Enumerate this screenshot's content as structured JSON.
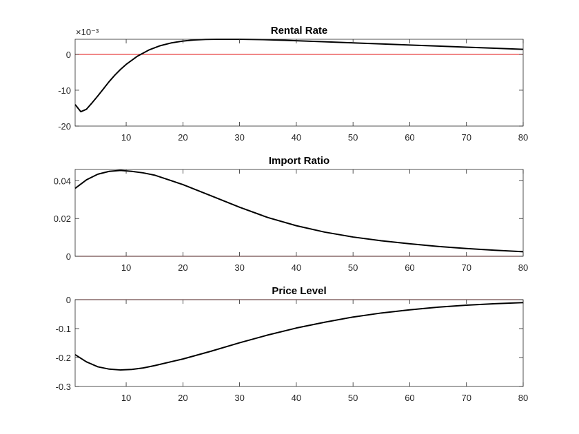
{
  "chart_data": [
    {
      "type": "line",
      "title": "Rental Rate",
      "xlim": [
        1,
        80
      ],
      "ylim": [
        -20,
        4.2
      ],
      "xticks": [
        10,
        20,
        30,
        40,
        50,
        60,
        70,
        80
      ],
      "yticks": [
        -20,
        -10,
        0
      ],
      "ytick_labels": [
        "-20",
        "-10",
        "0"
      ],
      "exponent_label": "×10⁻³",
      "reference_line": 0,
      "colors": {
        "series": "#000000",
        "reference": "#e00000"
      },
      "series": [
        {
          "x": [
            1,
            2,
            3,
            4,
            5,
            6,
            7,
            8,
            9,
            10,
            12,
            14,
            16,
            18,
            20,
            22,
            24,
            26,
            28,
            30,
            32,
            34,
            36,
            38,
            40,
            45,
            50,
            55,
            60,
            65,
            70,
            75,
            80
          ],
          "values": [
            -14,
            -16,
            -15.3,
            -13.5,
            -11.6,
            -9.6,
            -7.6,
            -5.8,
            -4.2,
            -2.8,
            -0.5,
            1.2,
            2.4,
            3.2,
            3.7,
            4.0,
            4.15,
            4.2,
            4.2,
            4.2,
            4.15,
            4.1,
            4.0,
            3.9,
            3.8,
            3.5,
            3.2,
            2.9,
            2.6,
            2.3,
            2.0,
            1.7,
            1.4
          ]
        }
      ]
    },
    {
      "type": "line",
      "title": "Import Ratio",
      "xlim": [
        1,
        80
      ],
      "ylim": [
        0,
        0.046
      ],
      "xticks": [
        10,
        20,
        30,
        40,
        50,
        60,
        70,
        80
      ],
      "yticks": [
        0,
        0.02,
        0.04
      ],
      "ytick_labels": [
        "0",
        "0.02",
        "0.04"
      ],
      "reference_line": 0,
      "colors": {
        "series": "#000000",
        "reference": "#e00000"
      },
      "series": [
        {
          "x": [
            1,
            3,
            5,
            7,
            9,
            11,
            13,
            15,
            20,
            25,
            30,
            35,
            40,
            45,
            50,
            55,
            60,
            65,
            70,
            75,
            80
          ],
          "values": [
            0.036,
            0.0405,
            0.0435,
            0.045,
            0.0455,
            0.045,
            0.0442,
            0.043,
            0.038,
            0.032,
            0.026,
            0.0205,
            0.0162,
            0.0128,
            0.0102,
            0.0082,
            0.0066,
            0.0052,
            0.0041,
            0.0032,
            0.0024
          ]
        }
      ]
    },
    {
      "type": "line",
      "title": "Price Level",
      "xlim": [
        1,
        80
      ],
      "ylim": [
        -0.3,
        0
      ],
      "xticks": [
        10,
        20,
        30,
        40,
        50,
        60,
        70,
        80
      ],
      "yticks": [
        -0.3,
        -0.2,
        -0.1,
        0
      ],
      "ytick_labels": [
        "-0.3",
        "-0.2",
        "-0.1",
        "0"
      ],
      "reference_line": 0,
      "colors": {
        "series": "#000000",
        "reference": "#e00000"
      },
      "series": [
        {
          "x": [
            1,
            3,
            5,
            7,
            9,
            11,
            13,
            15,
            20,
            25,
            30,
            35,
            40,
            45,
            50,
            55,
            60,
            65,
            70,
            75,
            80
          ],
          "values": [
            -0.19,
            -0.215,
            -0.232,
            -0.24,
            -0.243,
            -0.241,
            -0.236,
            -0.228,
            -0.205,
            -0.178,
            -0.149,
            -0.122,
            -0.098,
            -0.078,
            -0.06,
            -0.046,
            -0.035,
            -0.026,
            -0.019,
            -0.014,
            -0.01
          ]
        }
      ]
    }
  ]
}
